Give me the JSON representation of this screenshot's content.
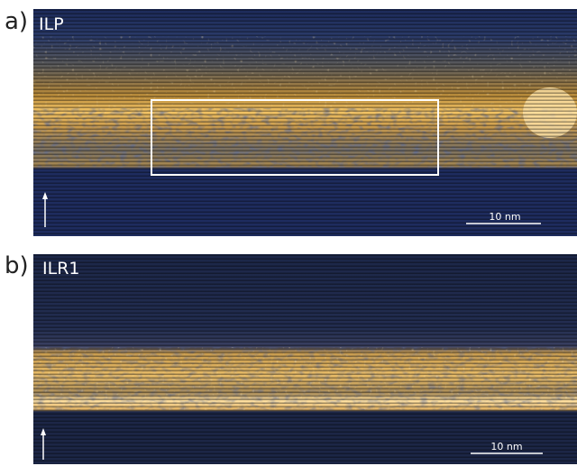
{
  "figure": {
    "panels": [
      {
        "letter": "a)",
        "name": "ILP",
        "scale_bar": "10 nm"
      },
      {
        "letter": "b)",
        "name": "ILR1",
        "scale_bar": "10 nm"
      }
    ]
  }
}
